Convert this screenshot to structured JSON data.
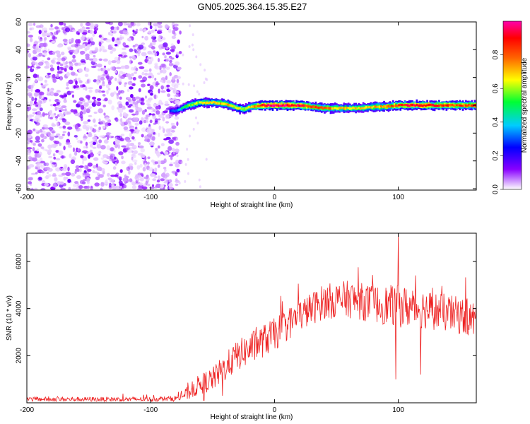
{
  "title": "GN05.2025.364.15.35.E27",
  "chart_data": [
    {
      "type": "heatmap",
      "name": "spectrogram",
      "xlabel": "Height of straight line (km)",
      "ylabel": "Frequency (Hz)",
      "xlim": [
        -200,
        163
      ],
      "ylim": [
        -61,
        60
      ],
      "xticks": [
        -200,
        -100,
        0,
        100
      ],
      "yticks": [
        60,
        40,
        20,
        0,
        -20,
        -40,
        -60
      ],
      "colorbar": {
        "label": "Normalized spectral amplitude",
        "range": [
          0,
          1
        ],
        "ticks": [
          0.0,
          0.2,
          0.4,
          0.6,
          0.8
        ],
        "colors": [
          "#ffffff",
          "#8800ff",
          "#0000ff",
          "#00ccff",
          "#00ff33",
          "#ffff00",
          "#ff6600",
          "#ff0000",
          "#ff00aa"
        ]
      },
      "noise_region": {
        "x_range": [
          -200,
          -82
        ],
        "typical_amplitude": 0.05
      },
      "signal_ridge": {
        "x": [
          -85,
          -80,
          -75,
          -70,
          -60,
          -50,
          -40,
          -30,
          -25,
          -20,
          -10,
          0,
          10,
          20,
          30,
          40,
          50,
          60,
          70,
          80,
          90,
          100,
          110,
          120,
          130,
          140,
          150,
          163
        ],
        "freq": [
          -4,
          -4,
          -2,
          0,
          2,
          2,
          1,
          -2,
          -3,
          -1,
          0,
          0,
          0,
          0,
          -1,
          -2,
          -2,
          -2,
          -2,
          -1,
          -1,
          0,
          0,
          0,
          0,
          0,
          0,
          0
        ],
        "amplitude": [
          0.25,
          0.3,
          0.45,
          0.55,
          0.6,
          0.65,
          0.7,
          0.6,
          0.55,
          0.65,
          0.9,
          0.95,
          0.95,
          0.9,
          0.8,
          0.75,
          0.7,
          0.65,
          0.65,
          0.7,
          0.75,
          0.85,
          0.9,
          0.9,
          0.85,
          0.85,
          0.8,
          0.8
        ]
      }
    },
    {
      "type": "line",
      "name": "snr",
      "xlabel": "Height of straight line (km)",
      "ylabel": "SNR (10 * v/v)",
      "xlim": [
        -200,
        163
      ],
      "ylim": [
        0,
        7200
      ],
      "xticks": [
        -200,
        -100,
        0,
        100
      ],
      "yticks": [
        2000,
        4000,
        6000
      ],
      "color": "#ee2222",
      "envelope": {
        "x": [
          -200,
          -150,
          -100,
          -80,
          -70,
          -60,
          -50,
          -40,
          -30,
          -20,
          -10,
          0,
          10,
          20,
          30,
          40,
          60,
          80,
          100,
          120,
          140,
          150,
          163
        ],
        "mean": [
          150,
          150,
          150,
          180,
          400,
          800,
          1000,
          1500,
          2000,
          2300,
          2600,
          2900,
          3300,
          3700,
          4000,
          4300,
          4400,
          4200,
          4100,
          4000,
          3800,
          3700,
          3500
        ],
        "spread": [
          100,
          100,
          100,
          120,
          300,
          450,
          500,
          600,
          650,
          700,
          700,
          700,
          700,
          700,
          700,
          750,
          800,
          800,
          900,
          850,
          800,
          800,
          800
        ]
      },
      "spikes": [
        {
          "x": 100,
          "y": 7200
        },
        {
          "x": 98,
          "y": 1000
        },
        {
          "x": 118,
          "y": 1200
        },
        {
          "x": -42,
          "y": 300
        },
        {
          "x": -57,
          "y": 100
        }
      ]
    }
  ]
}
